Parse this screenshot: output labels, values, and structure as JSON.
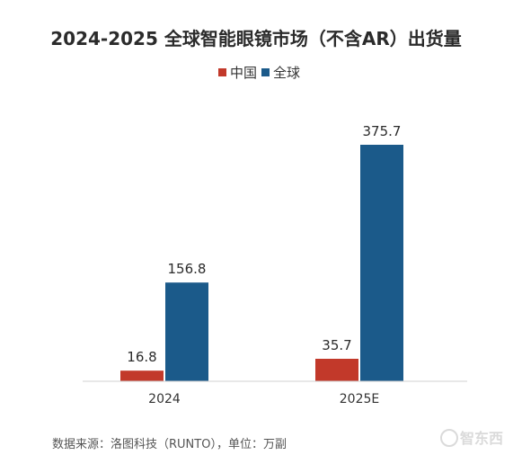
{
  "chart_data": {
    "type": "bar",
    "title": "2024-2025 全球智能眼镜市场（不含AR）出货量",
    "categories": [
      "2024",
      "2025E"
    ],
    "series": [
      {
        "name": "中国",
        "values": [
          16.8,
          35.7
        ],
        "labels": [
          "16.8",
          "35.7"
        ]
      },
      {
        "name": "全球",
        "values": [
          156.8,
          375.7
        ],
        "labels": [
          "156.8",
          "375.7"
        ]
      }
    ],
    "colors": [
      "#c2392a",
      "#1b5a8a"
    ],
    "ylim": [
      0,
      420
    ],
    "grid": false,
    "legend_position": "top-center",
    "xlabel": "",
    "ylabel": ""
  },
  "source_note": "数据来源：洛图科技（RUNTO），单位：万副",
  "watermark": "智东西"
}
